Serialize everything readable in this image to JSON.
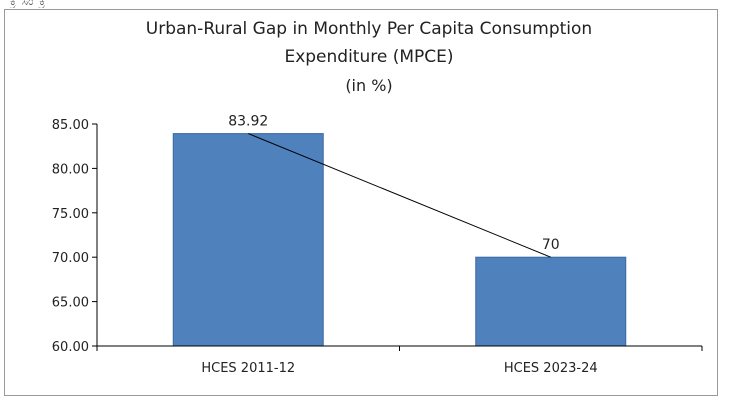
{
  "chart_data": {
    "type": "bar",
    "title": "Urban-Rural Gap in Monthly Per Capita Consumption Expenditure (MPCE)",
    "title_lines": [
      "Urban-Rural Gap in Monthly Per Capita Consumption",
      "Expenditure (MPCE)"
    ],
    "subtitle": "(in %)",
    "categories": [
      "HCES 2011-12",
      "HCES 2023-24"
    ],
    "values": [
      83.92,
      70
    ],
    "data_labels": [
      "83.92",
      "70"
    ],
    "ylim": [
      60,
      85
    ],
    "yticks": [
      "60.00",
      "65.00",
      "70.00",
      "75.00",
      "80.00",
      "85.00"
    ],
    "trend_line": true,
    "grid": false,
    "colors": {
      "bar_fill": "#4f81bd",
      "bar_stroke": "#3b6aa0",
      "trend": "#000000",
      "axis": "#000000"
    }
  },
  "crop_text": "ಕ್ರ ಸಂ  ಕ್ರ"
}
